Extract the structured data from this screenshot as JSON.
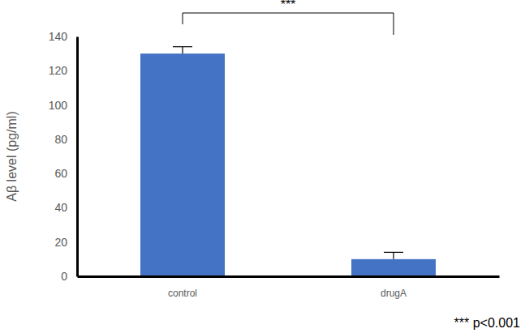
{
  "chart_data": {
    "type": "bar",
    "y_label": "Aβ level (pg/ml)",
    "categories": [
      "control",
      "drugA"
    ],
    "values": [
      130,
      10
    ],
    "errors": [
      4,
      4
    ],
    "color": "#4472c4",
    "ylim": [
      0,
      140
    ],
    "yticks": [
      0,
      20,
      40,
      60,
      80,
      100,
      120,
      140
    ],
    "grid": false,
    "annotations": [
      {
        "text": "***"
      },
      {
        "text": "*** p<0.001"
      }
    ]
  }
}
